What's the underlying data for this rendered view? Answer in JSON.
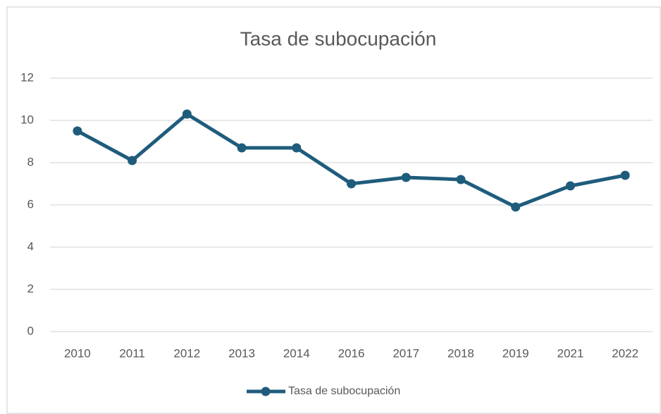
{
  "chart_data": {
    "type": "line",
    "title": "Tasa de subocupación",
    "categories": [
      "2010",
      "2011",
      "2012",
      "2013",
      "2014",
      "2016",
      "2017",
      "2018",
      "2019",
      "2021",
      "2022"
    ],
    "series": [
      {
        "name": "Tasa de subocupación",
        "color": "#1f5c7c",
        "values": [
          9.5,
          8.1,
          10.3,
          8.7,
          8.7,
          7.0,
          7.3,
          7.2,
          5.9,
          6.9,
          7.4
        ]
      }
    ],
    "ylim": [
      0,
      12
    ],
    "yticks": [
      0,
      2,
      4,
      6,
      8,
      10,
      12
    ],
    "grid": true,
    "legend": "bottom"
  }
}
